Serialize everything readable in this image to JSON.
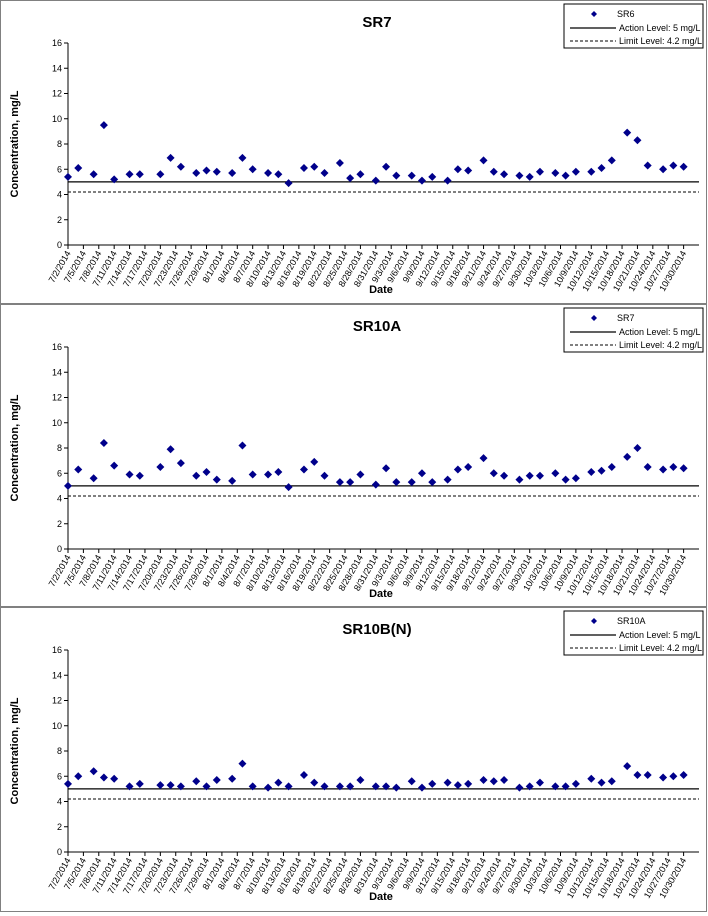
{
  "dates": [
    "7/2/2014",
    "7/5/2014",
    "7/8/2014",
    "7/11/2014",
    "7/14/2014",
    "7/17/2014",
    "7/20/2014",
    "7/23/2014",
    "7/26/2014",
    "7/29/2014",
    "8/1/2014",
    "8/4/2014",
    "8/7/2014",
    "8/10/2014",
    "8/13/2014",
    "8/16/2014",
    "8/19/2014",
    "8/22/2014",
    "8/25/2014",
    "8/28/2014",
    "8/31/2014",
    "9/3/2014",
    "9/6/2014",
    "9/9/2014",
    "9/12/2014",
    "9/15/2014",
    "9/18/2014",
    "9/21/2014",
    "9/24/2014",
    "9/27/2014",
    "9/30/2014",
    "10/3/2014",
    "10/6/2014",
    "10/9/2014",
    "10/12/2014",
    "10/15/2014",
    "10/18/2014",
    "10/21/2014",
    "10/24/2014",
    "10/27/2014",
    "10/30/2014"
  ],
  "chart_data": [
    {
      "type": "scatter",
      "title": "SR7",
      "xlabel": "Date",
      "ylabel": "Concentration, mg/L",
      "ylim": [
        0,
        16
      ],
      "yticks": [
        "0",
        "2",
        "4",
        "6",
        "8",
        "10",
        "12",
        "14",
        "16"
      ],
      "grid": false,
      "legend_position": "top-right",
      "series": [
        {
          "name": "SR6",
          "marker": "diamond",
          "color": "#00008B",
          "x": [
            "7/2/2014",
            "7/4/2014",
            "7/7/2014",
            "7/9/2014",
            "7/11/2014",
            "7/14/2014",
            "7/16/2014",
            "7/20/2014",
            "7/22/2014",
            "7/24/2014",
            "7/27/2014",
            "7/29/2014",
            "7/31/2014",
            "8/3/2014",
            "8/5/2014",
            "8/7/2014",
            "8/10/2014",
            "8/12/2014",
            "8/14/2014",
            "8/17/2014",
            "8/19/2014",
            "8/21/2014",
            "8/24/2014",
            "8/26/2014",
            "8/28/2014",
            "8/31/2014",
            "9/2/2014",
            "9/4/2014",
            "9/7/2014",
            "9/9/2014",
            "9/11/2014",
            "9/14/2014",
            "9/16/2014",
            "9/18/2014",
            "9/21/2014",
            "9/23/2014",
            "9/25/2014",
            "9/28/2014",
            "9/30/2014",
            "10/2/2014",
            "10/5/2014",
            "10/7/2014",
            "10/9/2014",
            "10/12/2014",
            "10/14/2014",
            "10/16/2014",
            "10/19/2014",
            "10/21/2014",
            "10/23/2014",
            "10/26/2014",
            "10/28/2014",
            "10/30/2014"
          ],
          "y": [
            5.4,
            6.1,
            5.6,
            9.5,
            5.2,
            5.6,
            5.6,
            5.6,
            6.9,
            6.2,
            5.7,
            5.9,
            5.8,
            5.7,
            6.9,
            6.0,
            5.7,
            5.6,
            4.9,
            6.1,
            6.2,
            5.7,
            6.5,
            5.3,
            5.6,
            5.1,
            6.2,
            5.5,
            5.5,
            5.1,
            5.4,
            5.1,
            6.0,
            5.9,
            6.7,
            5.8,
            5.6,
            5.5,
            5.4,
            5.8,
            5.7,
            5.5,
            5.8,
            5.8,
            6.1,
            6.7,
            8.9,
            8.3,
            6.3,
            6.0,
            6.3,
            6.2
          ]
        },
        {
          "name": "Action Level: 5 mg/L",
          "style": "solid",
          "value": 5
        },
        {
          "name": "Limit Level: 4.2 mg/L",
          "style": "dashed",
          "value": 4.2
        }
      ]
    },
    {
      "type": "scatter",
      "title": "SR10A",
      "xlabel": "Date",
      "ylabel": "Concentration, mg/L",
      "ylim": [
        0,
        16
      ],
      "yticks": [
        "0",
        "2",
        "4",
        "6",
        "8",
        "10",
        "12",
        "14",
        "16"
      ],
      "grid": false,
      "legend_position": "top-right",
      "series": [
        {
          "name": "SR7",
          "marker": "diamond",
          "color": "#00008B",
          "x": [
            "7/2/2014",
            "7/4/2014",
            "7/7/2014",
            "7/9/2014",
            "7/11/2014",
            "7/14/2014",
            "7/16/2014",
            "7/20/2014",
            "7/22/2014",
            "7/24/2014",
            "7/27/2014",
            "7/29/2014",
            "7/31/2014",
            "8/3/2014",
            "8/5/2014",
            "8/7/2014",
            "8/10/2014",
            "8/12/2014",
            "8/14/2014",
            "8/17/2014",
            "8/19/2014",
            "8/21/2014",
            "8/24/2014",
            "8/26/2014",
            "8/28/2014",
            "8/31/2014",
            "9/2/2014",
            "9/4/2014",
            "9/7/2014",
            "9/9/2014",
            "9/11/2014",
            "9/14/2014",
            "9/16/2014",
            "9/18/2014",
            "9/21/2014",
            "9/23/2014",
            "9/25/2014",
            "9/28/2014",
            "9/30/2014",
            "10/2/2014",
            "10/5/2014",
            "10/7/2014",
            "10/9/2014",
            "10/12/2014",
            "10/14/2014",
            "10/16/2014",
            "10/19/2014",
            "10/21/2014",
            "10/23/2014",
            "10/26/2014",
            "10/28/2014",
            "10/30/2014"
          ],
          "y": [
            5.0,
            6.3,
            5.6,
            8.4,
            6.6,
            5.9,
            5.8,
            6.5,
            7.9,
            6.8,
            5.8,
            6.1,
            5.5,
            5.4,
            8.2,
            5.9,
            5.9,
            6.1,
            4.9,
            6.3,
            6.9,
            5.8,
            5.3,
            5.3,
            5.9,
            5.1,
            6.4,
            5.3,
            5.3,
            6.0,
            5.3,
            5.5,
            6.3,
            6.5,
            7.2,
            6.0,
            5.8,
            5.5,
            5.8,
            5.8,
            6.0,
            5.5,
            5.6,
            6.1,
            6.2,
            6.5,
            7.3,
            8.0,
            6.5,
            6.3,
            6.5,
            6.4
          ]
        },
        {
          "name": "Action Level: 5 mg/L",
          "style": "solid",
          "value": 5
        },
        {
          "name": "Limit Level: 4.2 mg/L",
          "style": "dashed",
          "value": 4.2
        }
      ]
    },
    {
      "type": "scatter",
      "title": "SR10B(N)",
      "xlabel": "Date",
      "ylabel": "Concentration, mg/L",
      "ylim": [
        0,
        16
      ],
      "yticks": [
        "0",
        "2",
        "4",
        "6",
        "8",
        "10",
        "12",
        "14",
        "16"
      ],
      "grid": false,
      "legend_position": "top-right",
      "series": [
        {
          "name": "SR10A",
          "marker": "diamond",
          "color": "#00008B",
          "x": [
            "7/2/2014",
            "7/4/2014",
            "7/7/2014",
            "7/9/2014",
            "7/11/2014",
            "7/14/2014",
            "7/16/2014",
            "7/20/2014",
            "7/22/2014",
            "7/24/2014",
            "7/27/2014",
            "7/29/2014",
            "7/31/2014",
            "8/3/2014",
            "8/5/2014",
            "8/7/2014",
            "8/10/2014",
            "8/12/2014",
            "8/14/2014",
            "8/17/2014",
            "8/19/2014",
            "8/21/2014",
            "8/24/2014",
            "8/26/2014",
            "8/28/2014",
            "8/31/2014",
            "9/2/2014",
            "9/4/2014",
            "9/7/2014",
            "9/9/2014",
            "9/11/2014",
            "9/14/2014",
            "9/16/2014",
            "9/18/2014",
            "9/21/2014",
            "9/23/2014",
            "9/25/2014",
            "9/28/2014",
            "9/30/2014",
            "10/2/2014",
            "10/5/2014",
            "10/7/2014",
            "10/9/2014",
            "10/12/2014",
            "10/14/2014",
            "10/16/2014",
            "10/19/2014",
            "10/21/2014",
            "10/23/2014",
            "10/26/2014",
            "10/28/2014",
            "10/30/2014"
          ],
          "y": [
            5.4,
            6.0,
            6.4,
            5.9,
            5.8,
            5.2,
            5.4,
            5.3,
            5.3,
            5.2,
            5.6,
            5.2,
            5.7,
            5.8,
            7.0,
            5.2,
            5.1,
            5.5,
            5.2,
            6.1,
            5.5,
            5.2,
            5.2,
            5.2,
            5.7,
            5.2,
            5.2,
            5.1,
            5.6,
            5.1,
            5.4,
            5.5,
            5.3,
            5.4,
            5.7,
            5.6,
            5.7,
            5.1,
            5.2,
            5.5,
            5.2,
            5.2,
            5.4,
            5.8,
            5.5,
            5.6,
            6.8,
            6.1,
            6.1,
            5.9,
            6.0,
            6.1
          ]
        },
        {
          "name": "Action Level: 5 mg/L",
          "style": "solid",
          "value": 5
        },
        {
          "name": "Limit Level: 4.2 mg/L",
          "style": "dashed",
          "value": 4.2
        }
      ]
    }
  ]
}
